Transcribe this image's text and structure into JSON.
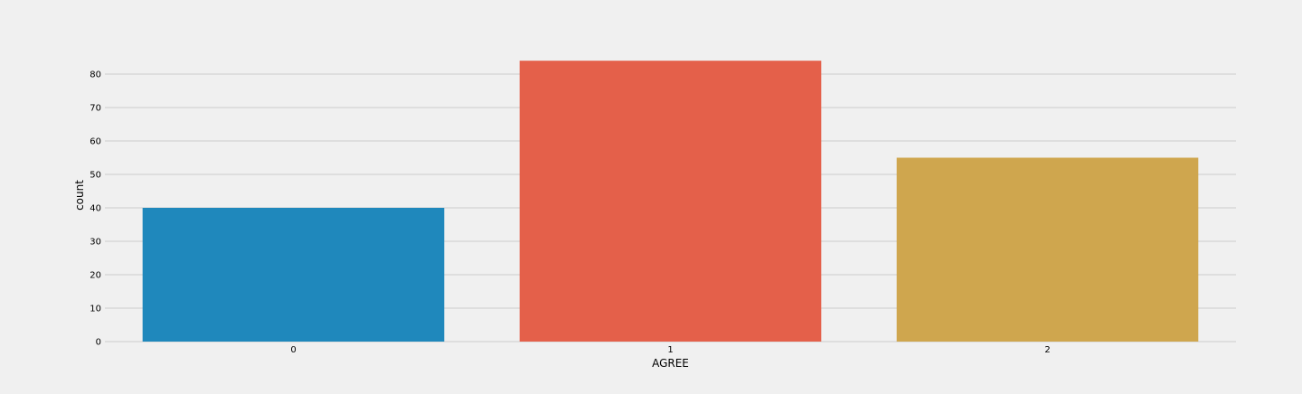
{
  "chart_data": {
    "type": "bar",
    "title": "",
    "xlabel": "AGREE",
    "ylabel": "count",
    "categories": [
      "0",
      "1",
      "2"
    ],
    "values": [
      40,
      84,
      55
    ],
    "colors": [
      "#1f88bc",
      "#e4604a",
      "#cfa64e"
    ],
    "ylim": [
      0,
      88
    ],
    "yticks": [
      0,
      10,
      20,
      30,
      40,
      50,
      60,
      70,
      80
    ],
    "grid": "horizontal",
    "background": "#f0f0f0",
    "grid_color": "#cbcbcb"
  }
}
